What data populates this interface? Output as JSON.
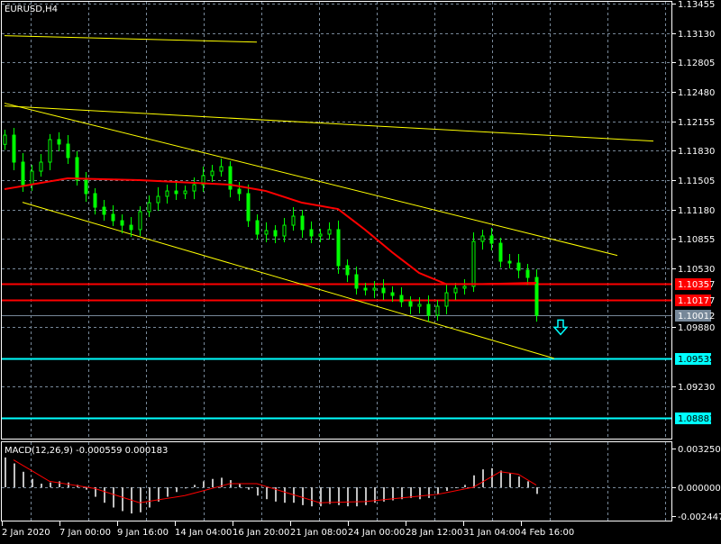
{
  "chart_data": {
    "type": "candlestick",
    "title": "EURUSD,H4",
    "symbol": "EURUSD",
    "timeframe": "H4",
    "ylim": [
      1.0856,
      1.1349
    ],
    "price_ticks": [
      "1.13455",
      "1.13130",
      "1.12805",
      "1.12480",
      "1.12155",
      "1.11830",
      "1.11505",
      "1.11180",
      "1.10855",
      "1.10530",
      "1.09880",
      "1.09230"
    ],
    "time_ticks": [
      "2 Jan 2020",
      "7 Jan 00:00",
      "9 Jan 16:00",
      "14 Jan 04:00",
      "16 Jan 20:00",
      "21 Jan 08:00",
      "24 Jan 00:00",
      "28 Jan 12:00",
      "31 Jan 04:00",
      "4 Feb 16:00"
    ],
    "first_open": 1.119,
    "closes": [
      1.12002,
      1.11704,
      1.11455,
      1.11604,
      1.11704,
      1.11953,
      1.11903,
      1.11754,
      1.11505,
      1.11356,
      1.11206,
      1.11127,
      1.11057,
      1.11007,
      1.10958,
      1.11157,
      1.11256,
      1.11326,
      1.11385,
      1.11356,
      1.11385,
      1.11455,
      1.11555,
      1.11604,
      1.11654,
      1.11405,
      1.11356,
      1.11057,
      1.10908,
      1.10948,
      1.10888,
      1.11007,
      1.11107,
      1.10958,
      1.10888,
      1.10908,
      1.10958,
      1.1056,
      1.1046,
      1.10311,
      1.10291,
      1.10311,
      1.10261,
      1.10231,
      1.10162,
      1.10112,
      1.10132,
      1.10012,
      1.10112,
      1.10261,
      1.10311,
      1.10331,
      1.10828,
      1.10888,
      1.10808,
      1.10609,
      1.10589,
      1.1051,
      1.1043,
      1.10012
    ],
    "moving_average": [
      [
        0,
        1.11405
      ],
      [
        7,
        1.11525
      ],
      [
        15,
        1.11505
      ],
      [
        25,
        1.11455
      ],
      [
        29,
        1.11385
      ],
      [
        33,
        1.11256
      ],
      [
        37,
        1.11186
      ],
      [
        40,
        1.10958
      ],
      [
        43,
        1.10709
      ],
      [
        46,
        1.1048
      ],
      [
        49,
        1.10357
      ],
      [
        53,
        1.10357
      ],
      [
        59,
        1.1037
      ]
    ],
    "levels": [
      {
        "price": 1.10357,
        "label": "1.10357",
        "color": "#ff0000",
        "kind": "resistance"
      },
      {
        "price": 1.10177,
        "label": "1.10177",
        "color": "#ff0000",
        "kind": "resistance"
      },
      {
        "price": 1.10012,
        "label": "1.10012",
        "color": "#778899",
        "kind": "bid"
      },
      {
        "price": 1.09535,
        "label": "1.09535",
        "color": "#00ffff",
        "kind": "target"
      },
      {
        "price": 1.08881,
        "label": "1.08881",
        "color": "#00ffff",
        "kind": "target"
      }
    ],
    "trendlines": [
      {
        "from": [
          0,
          1.131
        ],
        "to": [
          28,
          1.1303
        ]
      },
      {
        "from": [
          0,
          1.12325
        ],
        "to": [
          72,
          1.11937
        ]
      },
      {
        "from": [
          0,
          1.12355
        ],
        "to": [
          68,
          1.10673
        ]
      },
      {
        "from": [
          2,
          1.1126
        ],
        "to": [
          61,
          1.09535
        ]
      }
    ],
    "signal_arrow": {
      "direction": "down",
      "at_index": 61.7,
      "price": 1.0988,
      "color": "#00ffff"
    },
    "macd": {
      "label": "MACD(12,26,9) -0.000559 0.000183",
      "params": "12,26,9",
      "main": -0.000559,
      "signal_value": 0.000183,
      "ticks": [
        "0.003250",
        "0.000000",
        "-0.002447"
      ],
      "ylim": [
        -0.002447,
        0.00325
      ],
      "histogram": [
        0.0025,
        0.002,
        0.0013,
        0.0007,
        0.0003,
        0.0004,
        0.0005,
        0.0004,
        0.0002,
        -0.0002,
        -0.0008,
        -0.0013,
        -0.0017,
        -0.002,
        -0.0022,
        -0.0021,
        -0.0017,
        -0.0012,
        -0.0008,
        -0.0004,
        -0.0001,
        0.0002,
        0.0005,
        0.0007,
        0.0008,
        0.0006,
        0.0003,
        -0.0002,
        -0.0007,
        -0.001,
        -0.0012,
        -0.0013,
        -0.0013,
        -0.0015,
        -0.0016,
        -0.0016,
        -0.0014,
        -0.0015,
        -0.0016,
        -0.0016,
        -0.0015,
        -0.0013,
        -0.0012,
        -0.0011,
        -0.001,
        -0.0009,
        -0.001,
        -0.0009,
        -0.0006,
        -0.0003,
        0.0,
        0.0002,
        0.001,
        0.0015,
        0.0016,
        0.0014,
        0.0012,
        0.0009,
        0.0005,
        -0.000559
      ],
      "signal": [
        [
          1,
          0.0023
        ],
        [
          5,
          0.0005
        ],
        [
          10,
          -0.0001
        ],
        [
          15,
          -0.0013
        ],
        [
          20,
          -0.0007
        ],
        [
          25,
          0.0003
        ],
        [
          28,
          0.0003
        ],
        [
          35,
          -0.0013
        ],
        [
          40,
          -0.0012
        ],
        [
          48,
          -0.0006
        ],
        [
          52,
          0.0
        ],
        [
          55,
          0.0013
        ],
        [
          57,
          0.0011
        ],
        [
          59,
          0.000183
        ]
      ]
    },
    "colors": {
      "up": "#00ff00",
      "down": "#00ff00",
      "ma": "#ff0000",
      "trend": "#ffff00",
      "grid": "#778899",
      "hist": "#c0c0c0",
      "signal": "#ff0000"
    }
  }
}
